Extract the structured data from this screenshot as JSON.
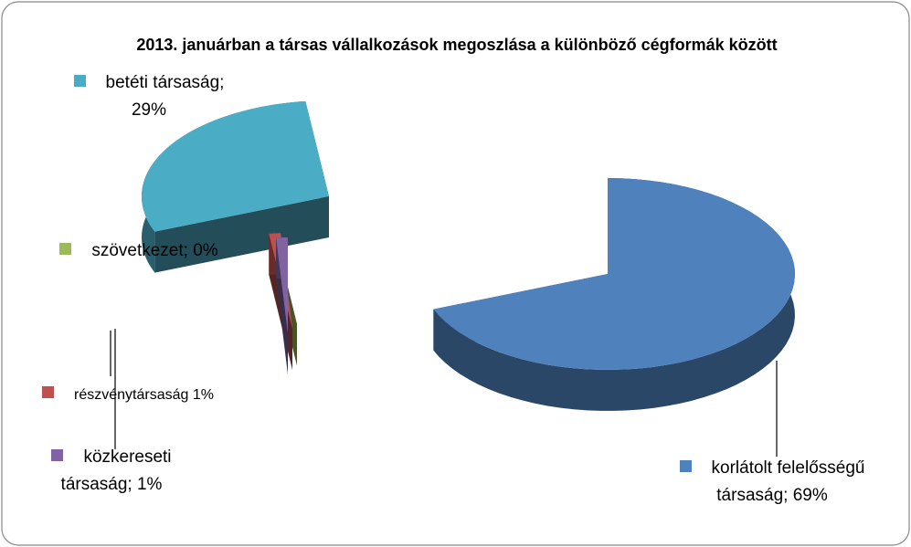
{
  "chart_data": {
    "type": "pie",
    "title": "2013. januárban a társas vállalkozások megoszlása a különböző cégformák között",
    "values": [
      69,
      29,
      0,
      1,
      1
    ],
    "value_labels": [
      "korlátolt felelősségű társaság; 69%",
      "betéti társaság; 29%",
      "szövetkezet; 0%",
      "részvénytársaság 1%",
      "közkereseti társaság; 1%"
    ],
    "colors": [
      "#4f81bd",
      "#4bacc6",
      "#9bbb59",
      "#c0504d",
      "#8064a2"
    ],
    "three_d": true,
    "exploded": true
  }
}
